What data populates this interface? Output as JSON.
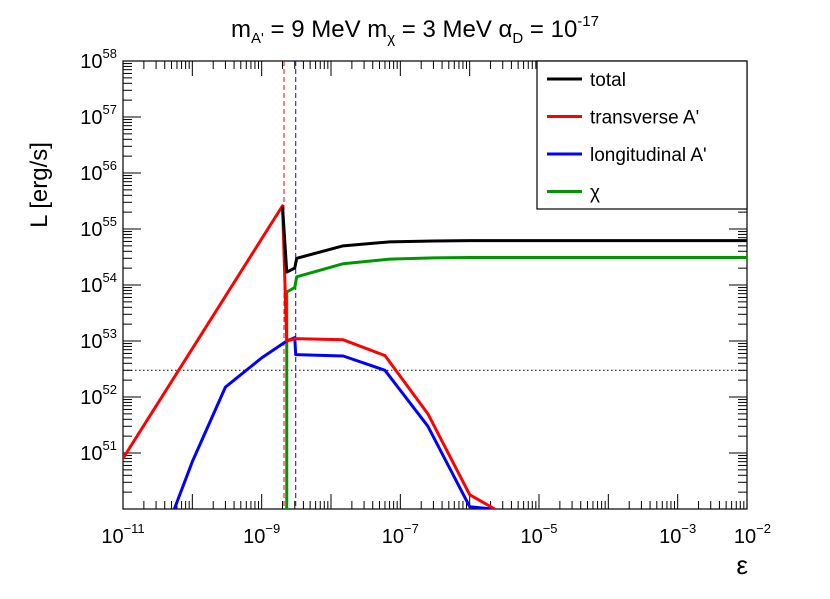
{
  "chart_data": {
    "type": "line",
    "title": {
      "parts": [
        {
          "name": "title-m-aprime",
          "base": "m",
          "sub": "A'",
          "rest": " = 9 MeV "
        },
        {
          "name": "title-m-chi",
          "base": "m",
          "sub": "χ",
          "rest": " = 3 MeV "
        },
        {
          "name": "title-alpha-d",
          "base": "α",
          "sub": "D",
          "rest": " = 10",
          "sup": "-17"
        }
      ]
    },
    "xlabel": "ε",
    "ylabel": "L [erg/s]",
    "x_scale": "log",
    "y_scale": "log",
    "xlim": [
      1e-11,
      0.01
    ],
    "ylim": [
      1e+50,
      1e+58
    ],
    "x_ticks": [
      {
        "base": "10",
        "exp": "−11",
        "value": 1e-11
      },
      {
        "base": "10",
        "exp": "−9",
        "value": 1e-09
      },
      {
        "base": "10",
        "exp": "−7",
        "value": 1e-07
      },
      {
        "base": "10",
        "exp": "−5",
        "value": 1e-05
      },
      {
        "base": "10",
        "exp": "−3",
        "value": 0.001
      },
      {
        "base": "10",
        "exp": "−2",
        "value": 0.01
      }
    ],
    "y_ticks": [
      {
        "base": "10",
        "exp": "51",
        "value": 1e+51
      },
      {
        "base": "10",
        "exp": "52",
        "value": 1e+52
      },
      {
        "base": "10",
        "exp": "53",
        "value": 1e+53
      },
      {
        "base": "10",
        "exp": "54",
        "value": 1e+54
      },
      {
        "base": "10",
        "exp": "55",
        "value": 1e+55
      },
      {
        "base": "10",
        "exp": "56",
        "value": 1e+56
      },
      {
        "base": "10",
        "exp": "57",
        "value": 1e+57
      },
      {
        "base": "10",
        "exp": "58",
        "value": 1e+58
      }
    ],
    "legend_position": "top-right",
    "series": [
      {
        "name": "total",
        "color": "#000000",
        "x": [
          2e-09,
          2.3e-09,
          3e-09,
          3.2e-09,
          1.5e-08,
          7e-08,
          3e-07,
          1e-06,
          0.0001,
          0.01
        ],
        "y": [
          2.5e+55,
          1.7e+54,
          2e+54,
          3e+54,
          5e+54,
          5.9e+54,
          6.1e+54,
          6.2e+54,
          6.2e+54,
          6.2e+54
        ]
      },
      {
        "name": "transverse A'",
        "color": "#ff0000",
        "x": [
          1e-11,
          2e-09,
          2.3e-09,
          3e-09,
          1.5e-08,
          6e-08,
          2.5e-07,
          1e-06,
          2.3e-06
        ],
        "y": [
          8e+50,
          2.6e+55,
          1e+53,
          1.1e+53,
          1.05e+53,
          5.5e+52,
          5e+51,
          1.8e+50,
          1e+50
        ]
      },
      {
        "name": "longitudinal A'",
        "color": "#0000ff",
        "x": [
          5.5e-11,
          1e-10,
          3e-10,
          1e-09,
          2.3e-09,
          3e-09,
          3.1e-09,
          1.5e-08,
          6e-08,
          2.5e-07,
          1e-06,
          2.1e-06
        ],
        "y": [
          1e+50,
          7e+50,
          1.5e+52,
          5e+52,
          1e+53,
          1.15e+53,
          5.7e+52,
          5.4e+52,
          3e+52,
          3e+51,
          1.1e+50,
          1e+50
        ]
      },
      {
        "name": "χ",
        "color": "#009600",
        "x": [
          2.3e-09,
          2.3e-09,
          3e-09,
          3.2e-09,
          1.5e-08,
          7e-08,
          3e-07,
          1e-06,
          0.0001,
          0.01
        ],
        "y": [
          1e+50,
          7.5e+53,
          9e+53,
          1.4e+54,
          2.4e+54,
          2.9e+54,
          3.05e+54,
          3.1e+54,
          3.1e+54,
          3.1e+54
        ]
      }
    ],
    "reference_lines": [
      {
        "name": "vline-red",
        "axis": "x",
        "value": 2.1e-09,
        "color": "#ff0000",
        "style": "dashed"
      },
      {
        "name": "vline-blue",
        "axis": "x",
        "value": 3.1e-09,
        "color": "#0000ff",
        "style": "dashed"
      },
      {
        "name": "hline-threshold",
        "axis": "y",
        "value": 3e+52,
        "color": "#000000",
        "style": "dotted"
      }
    ]
  }
}
